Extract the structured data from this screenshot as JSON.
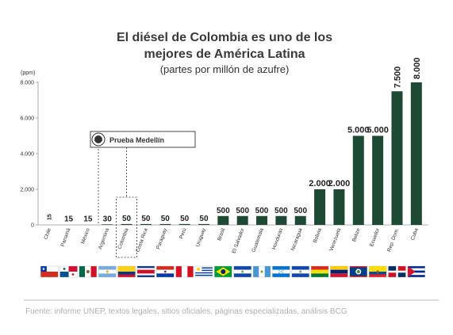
{
  "chart_data": {
    "type": "bar",
    "title_line1": "El diésel de Colombia es uno de los",
    "title_line2": "mejores de América Latina",
    "subtitle": "(partes por millón de azufre)",
    "ylabel": "(ppm)",
    "ylim": [
      0,
      8000
    ],
    "yticks": [
      "0",
      "2.000",
      "4.000",
      "6.000",
      "8.000"
    ],
    "ytick_values": [
      0,
      2000,
      4000,
      6000,
      8000
    ],
    "grid": false,
    "categories": [
      "Chile",
      "Panamá",
      "México",
      "Argentina",
      "Colombia",
      "Costa Rica",
      "Paraguay",
      "Perú",
      "Uruguay",
      "Brasil",
      "El Salvador",
      "Guatemala",
      "Honduras",
      "Nicaragua",
      "Bolivia",
      "Venezuela",
      "Belize",
      "Ecuador",
      "Rep. Dom.",
      "Cuba"
    ],
    "values": [
      15,
      15,
      15,
      30,
      50,
      50,
      50,
      50,
      50,
      500,
      500,
      500,
      500,
      500,
      2000,
      2000,
      5000,
      5000,
      7500,
      8000
    ],
    "value_labels": [
      "15",
      "15",
      "15",
      "30",
      "50",
      "50",
      "50",
      "50",
      "50",
      "500",
      "500",
      "500",
      "500",
      "500",
      "2.000",
      "2.000",
      "5.000",
      "5.000",
      "7.500",
      "8.000"
    ],
    "bar_color": "#1e4a35",
    "annotation": "Prueba Medellín",
    "highlight_category": "Colombia",
    "flags": [
      "chile-flag",
      "panama-flag",
      "mexico-flag",
      "argentina-flag",
      "colombia-flag",
      "costa-rica-flag",
      "paraguay-flag",
      "peru-flag",
      "uruguay-flag",
      "brazil-flag",
      "el-salvador-flag",
      "guatemala-flag",
      "honduras-flag",
      "nicaragua-flag",
      "bolivia-flag",
      "venezuela-flag",
      "belize-flag",
      "ecuador-flag",
      "dominican-republic-flag",
      "cuba-flag"
    ],
    "source": "Fuente: informe UNEP, textos legales, sitios oficiales, páginas especializadas, análisis BCG"
  }
}
